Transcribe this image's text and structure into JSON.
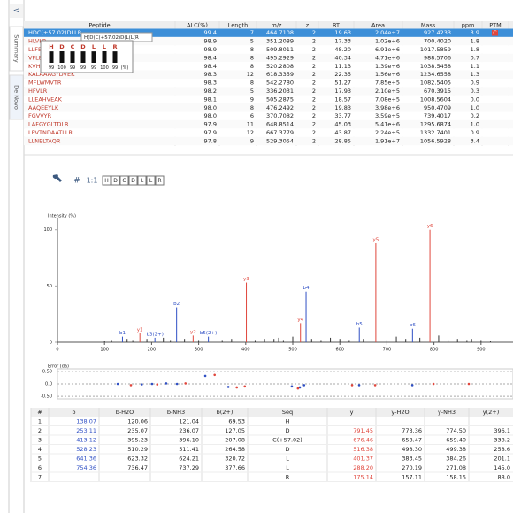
{
  "sidebar": {
    "collapse": "<",
    "tabs": [
      "Summary",
      "De Novo"
    ]
  },
  "peptide_table": {
    "columns": [
      "Peptide",
      "ALC(%)",
      "Length",
      "m/z",
      "z",
      "RT",
      "Area",
      "Mass",
      "ppm",
      "PTM"
    ],
    "rows": [
      [
        "HDC(+57.02)DLLR",
        "99.4",
        "7",
        "464.7108",
        "2",
        "19.63",
        "2.04e+7",
        "927.4233",
        "3.9",
        "C"
      ],
      [
        "HLVLR",
        "98.9",
        "5",
        "351.2089",
        "2",
        "17.33",
        "1.02e+6",
        "700.4020",
        "1.8"
      ],
      [
        "LLFEELVR",
        "98.9",
        "8",
        "509.8011",
        "2",
        "48.20",
        "6.91e+6",
        "1017.5859",
        "1.8"
      ],
      [
        "VFLENVLR",
        "98.4",
        "8",
        "495.2929",
        "2",
        "40.34",
        "4.71e+6",
        "988.5706",
        "0.7"
      ],
      [
        "KVHEEELR",
        "98.4",
        "8",
        "520.2808",
        "2",
        "11.13",
        "1.39e+6",
        "1038.5458",
        "1.1"
      ],
      [
        "KALAAAGYDVEK",
        "98.3",
        "12",
        "618.3359",
        "2",
        "22.35",
        "1.56e+6",
        "1234.6558",
        "1.3"
      ],
      [
        "MFLWMVTR",
        "98.3",
        "8",
        "542.2780",
        "2",
        "51.27",
        "7.85e+5",
        "1082.5405",
        "0.9"
      ],
      [
        "HFVLR",
        "98.2",
        "5",
        "336.2031",
        "2",
        "17.93",
        "2.10e+5",
        "670.3915",
        "0.3"
      ],
      [
        "LLEAHVEAK",
        "98.1",
        "9",
        "505.2875",
        "2",
        "18.57",
        "7.08e+5",
        "1008.5604",
        "0.0"
      ],
      [
        "AAQEEYLK",
        "98.0",
        "8",
        "476.2492",
        "2",
        "19.83",
        "3.98e+6",
        "950.4709",
        "1.0"
      ],
      [
        "FGVVYR",
        "98.0",
        "6",
        "370.7082",
        "2",
        "33.77",
        "3.59e+5",
        "739.4017",
        "0.2"
      ],
      [
        "LAFGYGLTDLR",
        "97.9",
        "11",
        "648.8514",
        "2",
        "45.03",
        "5.41e+6",
        "1295.6874",
        "1.0"
      ],
      [
        "LPVTNDAATLLR",
        "97.9",
        "12",
        "667.3779",
        "2",
        "43.87",
        "2.24e+5",
        "1332.7401",
        "0.9"
      ],
      [
        "LLNELTAQR",
        "97.8",
        "9",
        "529.3054",
        "2",
        "28.85",
        "1.91e+7",
        "1056.5928",
        "3.4"
      ]
    ]
  },
  "tooltip": {
    "title": "H(D(C(+57.02)D(L(L(R",
    "residues": [
      "H",
      "D",
      "C",
      "D",
      "L",
      "L",
      "R"
    ],
    "confidences": [
      99,
      100,
      99,
      99,
      99,
      100,
      99
    ],
    "unit": "(%)"
  },
  "toolbar": {
    "hash": "#",
    "ratio": "1:1",
    "residues": [
      "H",
      "D",
      "C",
      "D",
      "L",
      "L",
      "R"
    ]
  },
  "chart_data": [
    {
      "type": "stick",
      "y_label": "Intensity (%)",
      "xlim": [
        0,
        968
      ],
      "ylim": [
        0,
        110
      ],
      "xticks": [
        0,
        100,
        200,
        300,
        400,
        500,
        600,
        700,
        800,
        900
      ],
      "yticks": [
        0,
        50,
        100
      ],
      "series": [
        {
          "color": "#2f4fc4",
          "x": [
            138.07,
            207.07,
            253.11,
            320.72,
            528.23,
            641.36,
            754.36
          ],
          "values": [
            5,
            4,
            31,
            5,
            45,
            13,
            12
          ],
          "labels": [
            "b1",
            "b3(2+)",
            "b2",
            "b5(2+)",
            "b4",
            "b5",
            "b6"
          ]
        },
        {
          "color": "#e0463c",
          "x": [
            175.14,
            288.2,
            401.37,
            516.38,
            676.46,
            791.45
          ],
          "values": [
            8,
            6,
            53,
            17,
            88,
            100
          ],
          "labels": [
            "y1",
            "y2",
            "y3",
            "y4",
            "y5",
            "y6"
          ]
        },
        {
          "color": "#333333",
          "x": [
            100,
            115,
            148,
            160,
            190,
            225,
            240,
            270,
            300,
            350,
            370,
            390,
            420,
            440,
            460,
            470,
            480,
            500,
            540,
            560,
            580,
            600,
            620,
            650,
            700,
            720,
            740,
            770,
            810,
            830,
            850,
            870,
            880,
            900,
            920
          ],
          "values": [
            1,
            2,
            3,
            2,
            3,
            4,
            2,
            3,
            2,
            2,
            3,
            4,
            2,
            3,
            3,
            4,
            2,
            5,
            3,
            2,
            4,
            3,
            2,
            3,
            2,
            5,
            3,
            4,
            6,
            2,
            3,
            2,
            3,
            2,
            1
          ]
        }
      ]
    },
    {
      "type": "scatter",
      "y_label": "Error (da)",
      "xlim": [
        0,
        968
      ],
      "ylim": [
        -0.6,
        0.6
      ],
      "yticks": [
        {
          "value": 0.5,
          "label": "0.50"
        },
        {
          "value": 0,
          "label": "0.0"
        },
        {
          "value": -0.5,
          "label": "-0.50"
        }
      ],
      "series": [
        {
          "color": "#2f4fc4",
          "x": [
            128,
            179,
            201,
            231,
            254,
            314,
            363,
            498,
            515,
            524,
            641,
            754
          ],
          "values": [
            0.0,
            -0.02,
            0.0,
            0.02,
            0.0,
            0.32,
            -0.12,
            -0.1,
            -0.14,
            -0.05,
            -0.05,
            -0.05
          ]
        },
        {
          "color": "#e0463c",
          "x": [
            156,
            212,
            272,
            334,
            381,
            398,
            511,
            626,
            675,
            799,
            874
          ],
          "values": [
            -0.05,
            -0.02,
            0.02,
            0.36,
            -0.14,
            -0.1,
            -0.18,
            -0.05,
            -0.05,
            0.0,
            0.0
          ]
        }
      ]
    }
  ],
  "ion_table": {
    "columns": [
      "#",
      "b",
      "b-H2O",
      "b-NH3",
      "b(2+)",
      "Seq",
      "y",
      "y-H2O",
      "y-NH3",
      "y(2+)"
    ],
    "rows": [
      [
        "1",
        "138.07",
        "120.06",
        "121.04",
        "69.53",
        "H",
        null,
        null,
        null,
        null
      ],
      [
        "2",
        "253.11",
        "235.07",
        "236.07",
        "127.05",
        "D",
        "791.45",
        "773.36",
        "774.50",
        "396.1"
      ],
      [
        "3",
        "413.12",
        "395.23",
        "396.10",
        "207.08",
        "C(+57.02)",
        "676.46",
        "658.47",
        "659.40",
        "338.2"
      ],
      [
        "4",
        "528.23",
        "510.29",
        "511.41",
        "264.58",
        "D",
        "516.38",
        "498.30",
        "499.38",
        "258.6"
      ],
      [
        "5",
        "641.36",
        "623.32",
        "624.21",
        "320.72",
        "L",
        "401.37",
        "383.45",
        "384.26",
        "201.1"
      ],
      [
        "6",
        "754.36",
        "736.47",
        "737.29",
        "377.66",
        "L",
        "288.20",
        "270.19",
        "271.08",
        "145.0"
      ],
      [
        "7",
        null,
        null,
        null,
        null,
        "R",
        "175.14",
        "157.11",
        "158.15",
        "88.0"
      ]
    ]
  }
}
